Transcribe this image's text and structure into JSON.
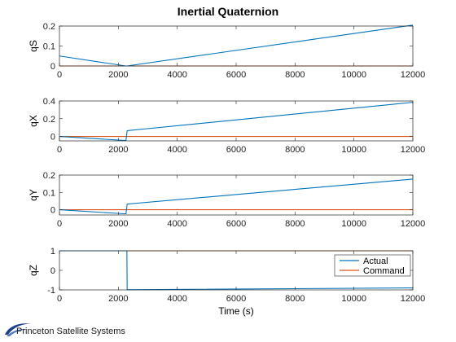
{
  "chart_data": {
    "type": "line",
    "title": "Inertial Quaternion",
    "xlabel": "Time (s)",
    "xlim": [
      0,
      12000
    ],
    "xticks": [
      0,
      2000,
      4000,
      6000,
      8000,
      10000,
      12000
    ],
    "legend": {
      "placement": "bottom-right",
      "entries": [
        "Actual",
        "Command"
      ]
    },
    "colors": {
      "Actual": "#0072BD",
      "Command": "#D95319"
    },
    "grid": false,
    "subplots": [
      {
        "ylabel": "qS",
        "ylim": [
          0,
          0.2
        ],
        "yticks": [
          0,
          0.1,
          0.2
        ],
        "series": [
          {
            "name": "Actual",
            "x": [
              0,
              2250,
              2300,
              12000
            ],
            "y": [
              0.05,
              0.0,
              0.0,
              0.205
            ]
          },
          {
            "name": "Command",
            "x": [
              0,
              12000
            ],
            "y": [
              0,
              0
            ]
          }
        ]
      },
      {
        "ylabel": "qX",
        "ylim": [
          -0.05,
          0.4
        ],
        "yticks": [
          0,
          0.2,
          0.4
        ],
        "series": [
          {
            "name": "Actual",
            "x": [
              0,
              2200,
              2260,
              2300,
              12000
            ],
            "y": [
              0.0,
              -0.045,
              -0.045,
              0.065,
              0.385
            ]
          },
          {
            "name": "Command",
            "x": [
              0,
              12000
            ],
            "y": [
              0,
              0
            ]
          }
        ]
      },
      {
        "ylabel": "qY",
        "ylim": [
          -0.03,
          0.2
        ],
        "yticks": [
          0,
          0.1,
          0.2
        ],
        "series": [
          {
            "name": "Actual",
            "x": [
              0,
              2200,
              2260,
              2300,
              12000
            ],
            "y": [
              0.0,
              -0.023,
              -0.023,
              0.033,
              0.177
            ]
          },
          {
            "name": "Command",
            "x": [
              0,
              12000
            ],
            "y": [
              0,
              0
            ]
          }
        ]
      },
      {
        "ylabel": "qZ",
        "ylim": [
          -1,
          1
        ],
        "yticks": [
          -1,
          0,
          1
        ],
        "series": [
          {
            "name": "Actual",
            "x": [
              0,
              2250,
              2290,
              2300,
              12000
            ],
            "y": [
              1,
              1,
              1,
              -0.99,
              -0.9
            ]
          },
          {
            "name": "Command",
            "x": [
              0,
              12000
            ],
            "y": [
              1,
              1
            ]
          }
        ]
      }
    ]
  },
  "logo": {
    "text": "Princeton Satellite Systems"
  }
}
